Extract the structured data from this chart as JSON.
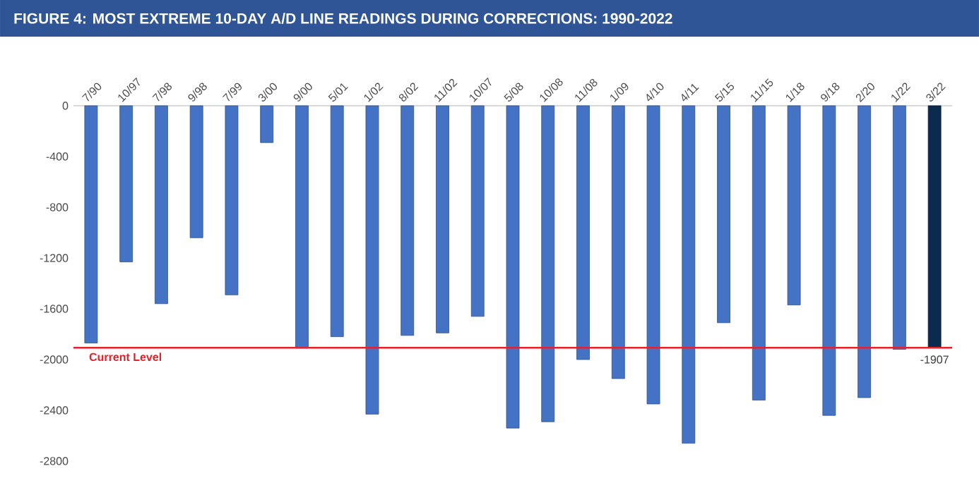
{
  "chart_data": {
    "type": "bar",
    "title": "FIGURE 4: MOST EXTREME 10-DAY A/D LINE READINGS DURING CORRECTIONS: 1990-2022",
    "categories": [
      "7/90",
      "10/97",
      "7/98",
      "9/98",
      "7/99",
      "3/00",
      "9/00",
      "5/01",
      "1/02",
      "8/02",
      "11/02",
      "10/07",
      "5/08",
      "10/08",
      "11/08",
      "1/09",
      "4/10",
      "4/11",
      "5/15",
      "11/15",
      "1/18",
      "9/18",
      "2/20",
      "1/22",
      "3/22"
    ],
    "values": [
      -1870,
      -1230,
      -1560,
      -1040,
      -1490,
      -290,
      -1910,
      -1820,
      -2430,
      -1810,
      -1790,
      -1660,
      -2540,
      -2490,
      -2000,
      -2150,
      -2350,
      -2660,
      -1710,
      -2320,
      -1570,
      -2440,
      -2300,
      -1920,
      -1907
    ],
    "colors": [
      "#4472c4",
      "#4472c4",
      "#4472c4",
      "#4472c4",
      "#4472c4",
      "#4472c4",
      "#4472c4",
      "#4472c4",
      "#4472c4",
      "#4472c4",
      "#4472c4",
      "#4472c4",
      "#4472c4",
      "#4472c4",
      "#4472c4",
      "#4472c4",
      "#4472c4",
      "#4472c4",
      "#4472c4",
      "#4472c4",
      "#4472c4",
      "#4472c4",
      "#4472c4",
      "#4472c4",
      "#0b2a4e"
    ],
    "value_labels": [
      null,
      null,
      null,
      null,
      null,
      null,
      null,
      null,
      null,
      null,
      null,
      null,
      null,
      null,
      null,
      null,
      null,
      null,
      null,
      null,
      null,
      null,
      null,
      null,
      "-1907"
    ],
    "ylim": [
      -2800,
      0
    ],
    "yticks": [
      0,
      -400,
      -800,
      -1200,
      -1600,
      -2000,
      -2400,
      -2800
    ],
    "ref_lines": [
      {
        "axis": "y",
        "value": -1907,
        "label": "Current Level",
        "color": "#e8202a"
      }
    ]
  }
}
